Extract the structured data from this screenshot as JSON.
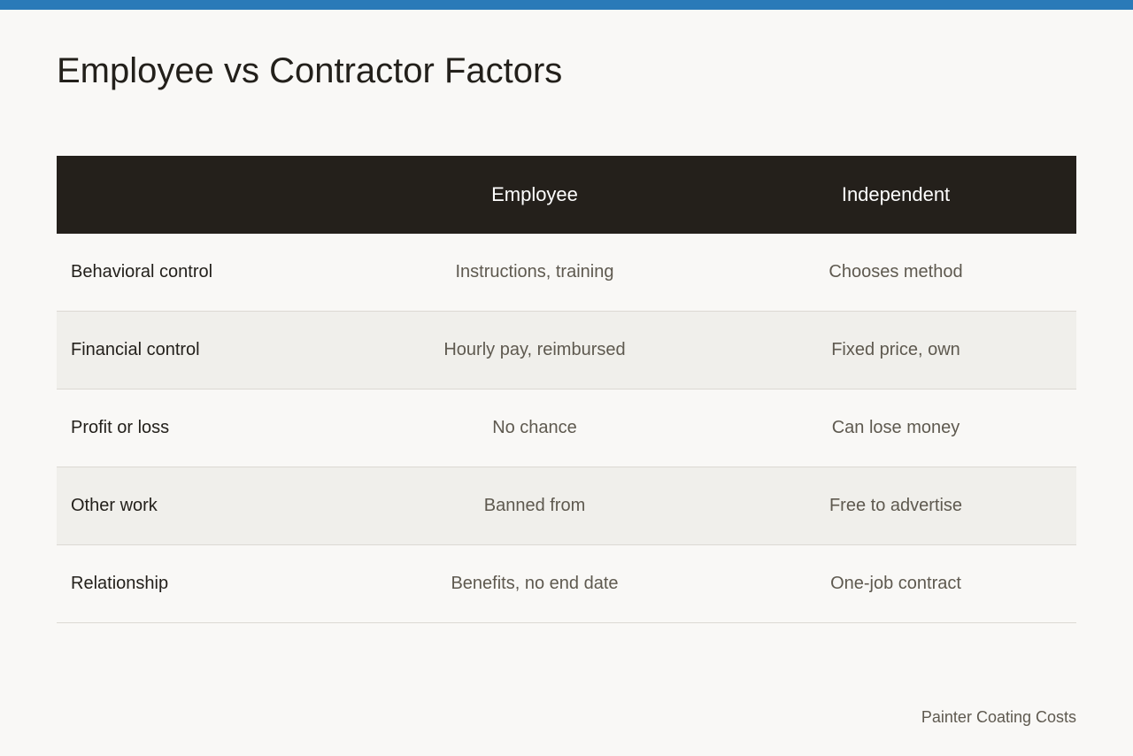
{
  "title": "Employee vs Contractor Factors",
  "table": {
    "headers": [
      "",
      "Employee",
      "Independent"
    ],
    "rows": [
      {
        "factor": "Behavioral control",
        "employee": "Instructions, training",
        "independent": "Chooses method"
      },
      {
        "factor": "Financial control",
        "employee": "Hourly pay, reimbursed",
        "independent": "Fixed price, own"
      },
      {
        "factor": "Profit or loss",
        "employee": "No chance",
        "independent": "Can lose money"
      },
      {
        "factor": "Other work",
        "employee": "Banned from",
        "independent": "Free to advertise"
      },
      {
        "factor": "Relationship",
        "employee": "Benefits, no end date",
        "independent": "One-job contract"
      }
    ]
  },
  "footer": "Painter Coating Costs",
  "colors": {
    "accent_bar": "#2a7ab8",
    "header_bg": "#24201b",
    "page_bg": "#f9f8f6",
    "stripe_bg": "#f0efeb"
  }
}
